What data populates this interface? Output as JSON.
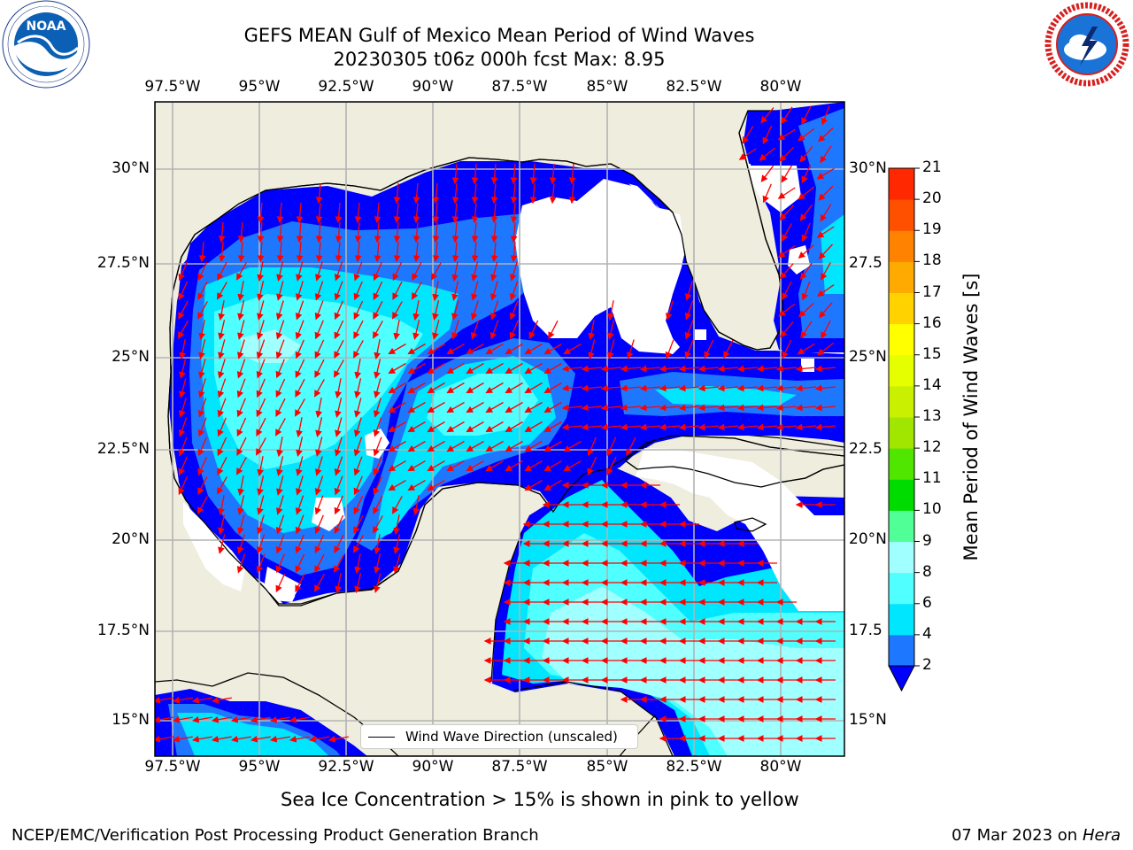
{
  "title": {
    "line1": "GEFS MEAN Gulf of Mexico Mean Period of Wind Waves",
    "line2": "20230305 t06z 000h fcst   Max: 8.95"
  },
  "map": {
    "lon_labels": [
      "97.5°W",
      "95°W",
      "92.5°W",
      "90°W",
      "87.5°W",
      "85°W",
      "82.5°W",
      "80°W"
    ],
    "lat_labels": [
      "30°N",
      "27.5°N",
      "25°N",
      "22.5°N",
      "20°N",
      "17.5°N",
      "15°N"
    ],
    "right_lat_labels": [
      "30°N",
      "27.5",
      "25°N",
      "22.5",
      "20°N",
      "17.5",
      "15°N"
    ],
    "colors": {
      "land": "#efedde",
      "coast": "#000000",
      "grid": "#b3b3b3",
      "arrow": "#ff0000",
      "missing": "#ffffff"
    },
    "legend": "Wind Wave Direction (unscaled)"
  },
  "colorbar": {
    "label": "Mean Period of Wind Waves [s]",
    "tick_labels": [
      "2",
      "4",
      "6",
      "8",
      "9",
      "10",
      "11",
      "12",
      "13",
      "14",
      "15",
      "16",
      "17",
      "18",
      "19",
      "20",
      "21"
    ],
    "colors": [
      "#0000ff",
      "#1e78ff",
      "#00e6ff",
      "#50ffff",
      "#a0ffff",
      "#50ff96",
      "#00dc00",
      "#50e600",
      "#a0e600",
      "#c8f000",
      "#e6ff00",
      "#ffff00",
      "#ffd200",
      "#ffaa00",
      "#ff8200",
      "#ff5000",
      "#ff2800",
      "#ff0000"
    ]
  },
  "sea_ice_note": "Sea Ice Concentration > 15% is shown in pink to yellow",
  "footer": {
    "left": "NCEP/EMC/Verification Post Processing Product Generation Branch",
    "date": "07 Mar 2023 on",
    "machine": "Hera"
  },
  "logos": {
    "noaa": "NOAA",
    "noaa_ring": "NATIONAL OCEANIC AND ATMOSPHERIC ADMINISTRATION · U.S. DEPARTMENT OF COMMERCE",
    "nws_ring": "NATIONAL WEATHER SERVICE"
  }
}
